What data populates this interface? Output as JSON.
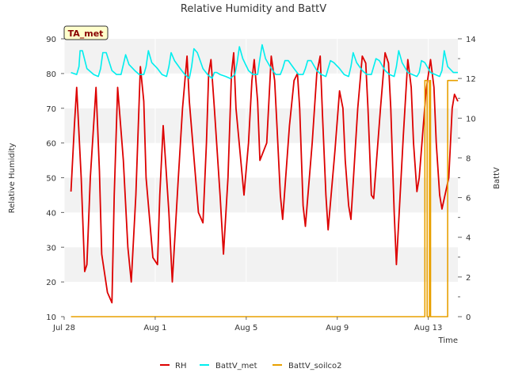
{
  "chart_data": {
    "type": "line",
    "title": "Relative Humidity and BattV",
    "badge": "TA_met",
    "xlabel": "Time",
    "ylabel_left": "Relative Humidity",
    "ylabel_right": "BattV",
    "xlim": [
      0,
      17.3
    ],
    "ylim_left": [
      10,
      90
    ],
    "ylim_right": [
      0,
      14
    ],
    "x_ticks": [
      {
        "value": 0,
        "label": "Jul 28"
      },
      {
        "value": 4,
        "label": "Aug 1"
      },
      {
        "value": 8,
        "label": "Aug 5"
      },
      {
        "value": 12,
        "label": "Aug 9"
      },
      {
        "value": 16,
        "label": "Aug 13"
      }
    ],
    "y_ticks_left": [
      10,
      20,
      30,
      40,
      50,
      60,
      70,
      80,
      90
    ],
    "y_ticks_right": [
      0,
      2,
      4,
      6,
      8,
      10,
      12,
      14
    ],
    "grid": "horizontal bands",
    "legend_position": "bottom",
    "colors": {
      "RH": "#dd0000",
      "BattV_met": "#00eeee",
      "BattV_soilco2": "#e8a000",
      "band": "#f2f2f2",
      "badge_bg": "#ffffcc",
      "badge_text": "#880000"
    },
    "series": [
      {
        "name": "RH",
        "axis": "left",
        "x": [
          0.3,
          0.45,
          0.55,
          0.75,
          0.9,
          1.0,
          1.15,
          1.4,
          1.55,
          1.65,
          1.9,
          2.1,
          2.2,
          2.35,
          2.6,
          2.8,
          2.95,
          3.15,
          3.35,
          3.5,
          3.6,
          3.9,
          4.1,
          4.2,
          4.35,
          4.6,
          4.75,
          5.0,
          5.2,
          5.4,
          5.5,
          5.9,
          6.1,
          6.25,
          6.35,
          6.45,
          6.6,
          6.85,
          7.0,
          7.2,
          7.35,
          7.45,
          7.55,
          7.9,
          8.1,
          8.25,
          8.35,
          8.5,
          8.6,
          8.9,
          9.1,
          9.25,
          9.35,
          9.5,
          9.6,
          9.9,
          10.1,
          10.25,
          10.35,
          10.5,
          10.6,
          10.9,
          11.1,
          11.25,
          11.35,
          11.5,
          11.6,
          11.9,
          12.1,
          12.25,
          12.35,
          12.5,
          12.6,
          12.9,
          13.1,
          13.25,
          13.35,
          13.5,
          13.6,
          13.9,
          14.1,
          14.25,
          14.35,
          14.5,
          14.6,
          14.9,
          15.1,
          15.25,
          15.35,
          15.5,
          15.6,
          15.9,
          16.1,
          16.25,
          16.35,
          16.5,
          16.6,
          16.9,
          17.05,
          17.15,
          17.3
        ],
        "y": [
          46,
          65,
          76,
          50,
          23,
          25,
          50,
          76,
          52,
          28,
          17,
          14,
          45,
          76,
          55,
          30,
          20,
          45,
          82,
          72,
          50,
          27,
          25,
          45,
          65,
          40,
          20,
          48,
          70,
          85,
          72,
          40,
          37,
          60,
          80,
          84,
          70,
          45,
          28,
          50,
          80,
          86,
          70,
          45,
          60,
          78,
          84,
          72,
          55,
          60,
          85,
          78,
          65,
          45,
          38,
          65,
          78,
          80,
          70,
          42,
          36,
          60,
          80,
          85,
          68,
          45,
          35,
          58,
          75,
          70,
          55,
          42,
          38,
          70,
          85,
          83,
          70,
          45,
          44,
          70,
          86,
          83,
          70,
          40,
          25,
          62,
          84,
          76,
          60,
          46,
          50,
          75,
          84,
          76,
          60,
          45,
          41,
          50,
          70,
          74,
          72
        ]
      },
      {
        "name": "BattV_met",
        "axis": "right",
        "x": [
          0.3,
          0.55,
          0.65,
          0.7,
          0.8,
          1.0,
          1.3,
          1.5,
          1.6,
          1.7,
          1.85,
          2.1,
          2.3,
          2.5,
          2.6,
          2.7,
          2.85,
          3.1,
          3.3,
          3.5,
          3.6,
          3.7,
          3.85,
          4.1,
          4.3,
          4.5,
          4.6,
          4.7,
          4.85,
          5.1,
          5.3,
          5.5,
          5.6,
          5.7,
          5.85,
          6.1,
          6.3,
          6.5,
          6.6,
          6.7,
          6.85,
          7.1,
          7.3,
          7.5,
          7.6,
          7.7,
          7.85,
          8.1,
          8.3,
          8.5,
          8.6,
          8.7,
          8.85,
          9.1,
          9.3,
          9.5,
          9.6,
          9.7,
          9.85,
          10.1,
          10.3,
          10.5,
          10.6,
          10.7,
          10.85,
          11.1,
          11.3,
          11.5,
          11.6,
          11.7,
          11.85,
          12.1,
          12.3,
          12.5,
          12.6,
          12.7,
          12.85,
          13.1,
          13.3,
          13.5,
          13.6,
          13.7,
          13.85,
          14.1,
          14.3,
          14.5,
          14.6,
          14.7,
          14.85,
          15.1,
          15.3,
          15.5,
          15.6,
          15.7,
          15.85,
          16.1,
          16.3,
          16.5,
          16.6,
          16.7,
          16.85,
          17.1,
          17.3
        ],
        "y": [
          12.3,
          12.2,
          12.6,
          13.4,
          13.4,
          12.5,
          12.2,
          12.1,
          12.5,
          13.3,
          13.3,
          12.4,
          12.2,
          12.2,
          12.7,
          13.2,
          12.7,
          12.4,
          12.2,
          12.2,
          12.6,
          13.4,
          12.8,
          12.5,
          12.2,
          12.1,
          12.6,
          13.3,
          12.9,
          12.5,
          12.2,
          12.0,
          12.6,
          13.5,
          13.3,
          12.5,
          12.2,
          12.0,
          12.3,
          12.3,
          12.2,
          12.1,
          12.0,
          12.2,
          12.8,
          13.6,
          13.0,
          12.4,
          12.2,
          12.2,
          13.0,
          13.7,
          13.0,
          12.5,
          12.2,
          12.2,
          12.5,
          12.9,
          12.9,
          12.5,
          12.2,
          12.2,
          12.5,
          12.9,
          12.9,
          12.4,
          12.2,
          12.1,
          12.5,
          12.9,
          12.8,
          12.5,
          12.2,
          12.1,
          12.6,
          13.3,
          12.8,
          12.4,
          12.2,
          12.2,
          12.6,
          13.0,
          12.9,
          12.4,
          12.2,
          12.1,
          12.6,
          13.4,
          12.8,
          12.3,
          12.2,
          12.1,
          12.3,
          12.9,
          12.8,
          12.3,
          12.2,
          12.1,
          12.4,
          13.4,
          12.6,
          12.3,
          12.3
        ]
      },
      {
        "name": "BattV_soilco2",
        "axis": "right",
        "x": [
          0.3,
          15.85,
          15.85,
          15.95,
          15.95,
          16.05,
          16.05,
          16.1,
          16.1,
          16.85,
          16.85,
          17.3
        ],
        "y": [
          0,
          0,
          11.9,
          11.9,
          0,
          0,
          11.9,
          11.9,
          0,
          0,
          11.9,
          11.9
        ]
      }
    ]
  }
}
